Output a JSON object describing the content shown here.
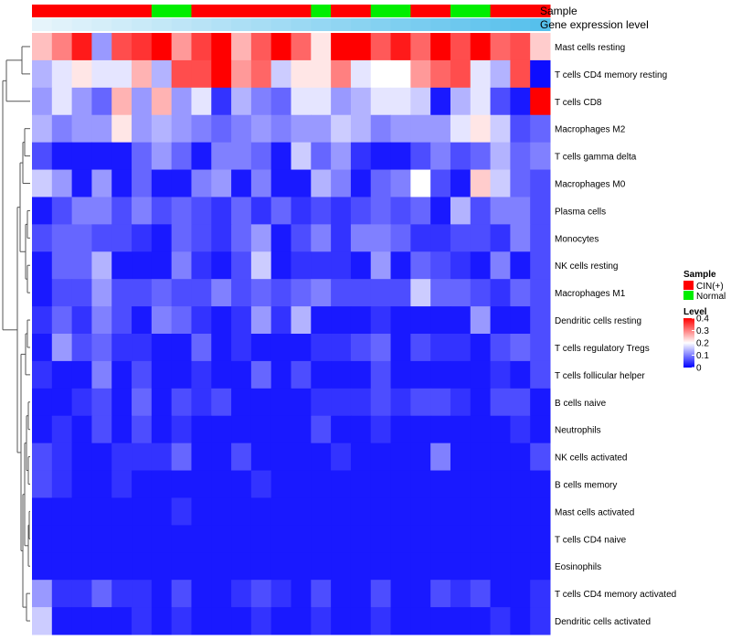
{
  "chart_data": {
    "type": "heatmap",
    "title": "",
    "value_min": 0,
    "value_max": 0.4,
    "annotation_tracks": [
      {
        "name": "Sample",
        "values": [
          "CIN(+)",
          "CIN(+)",
          "CIN(+)",
          "CIN(+)",
          "CIN(+)",
          "CIN(+)",
          "Normal",
          "Normal",
          "CIN(+)",
          "CIN(+)",
          "CIN(+)",
          "CIN(+)",
          "CIN(+)",
          "CIN(+)",
          "Normal",
          "CIN(+)",
          "CIN(+)",
          "Normal",
          "Normal",
          "CIN(+)",
          "CIN(+)",
          "Normal",
          "Normal",
          "CIN(+)",
          "CIN(+)",
          "CIN(+)"
        ]
      },
      {
        "name": "Gene expression level",
        "values": [
          0.0,
          0.04,
          0.08,
          0.12,
          0.16,
          0.2,
          0.24,
          0.28,
          0.32,
          0.36,
          0.4,
          0.44,
          0.48,
          0.52,
          0.56,
          0.6,
          0.64,
          0.68,
          0.72,
          0.76,
          0.8,
          0.84,
          0.88,
          0.92,
          0.96,
          1.0
        ]
      }
    ],
    "rows": [
      "Mast cells resting",
      "T cells CD4 memory resting",
      "T cells CD8",
      "Macrophages M2",
      "T cells gamma delta",
      "Macrophages M0",
      "Plasma cells",
      "Monocytes",
      "NK cells resting",
      "Macrophages M1",
      "Dendritic cells resting",
      "T cells regulatory  Tregs",
      "T cells follicular helper",
      "B cells naive",
      "Neutrophils",
      "NK cells activated",
      "B cells memory",
      "Mast cells activated",
      "T cells CD4 naive",
      "Eosinophils",
      "T cells CD4 memory activated",
      "Dendritic cells activated"
    ],
    "values": [
      [
        0.25,
        0.3,
        0.38,
        0.12,
        0.34,
        0.36,
        0.4,
        0.28,
        0.35,
        0.4,
        0.26,
        0.33,
        0.4,
        0.32,
        0.22,
        0.4,
        0.4,
        0.33,
        0.38,
        0.32,
        0.4,
        0.34,
        0.4,
        0.32,
        0.34,
        0.24
      ],
      [
        0.14,
        0.18,
        0.22,
        0.18,
        0.18,
        0.26,
        0.14,
        0.34,
        0.34,
        0.4,
        0.28,
        0.32,
        0.16,
        0.22,
        0.22,
        0.3,
        0.18,
        0.2,
        0.2,
        0.28,
        0.32,
        0.34,
        0.18,
        0.14,
        0.34,
        0.01
      ],
      [
        0.12,
        0.18,
        0.12,
        0.08,
        0.26,
        0.12,
        0.26,
        0.12,
        0.18,
        0.04,
        0.14,
        0.1,
        0.08,
        0.18,
        0.18,
        0.12,
        0.14,
        0.18,
        0.18,
        0.16,
        0.02,
        0.14,
        0.18,
        0.06,
        0.02,
        0.4
      ],
      [
        0.14,
        0.1,
        0.12,
        0.12,
        0.22,
        0.12,
        0.14,
        0.12,
        0.1,
        0.08,
        0.1,
        0.12,
        0.1,
        0.12,
        0.12,
        0.16,
        0.14,
        0.1,
        0.12,
        0.12,
        0.12,
        0.18,
        0.22,
        0.16,
        0.06,
        0.08
      ],
      [
        0.06,
        0.02,
        0.02,
        0.02,
        0.02,
        0.08,
        0.12,
        0.08,
        0.02,
        0.1,
        0.1,
        0.08,
        0.02,
        0.16,
        0.08,
        0.12,
        0.04,
        0.02,
        0.02,
        0.06,
        0.1,
        0.06,
        0.08,
        0.14,
        0.08,
        0.1
      ],
      [
        0.16,
        0.12,
        0.02,
        0.12,
        0.02,
        0.08,
        0.02,
        0.02,
        0.1,
        0.12,
        0.02,
        0.1,
        0.02,
        0.02,
        0.14,
        0.1,
        0.02,
        0.08,
        0.1,
        0.2,
        0.06,
        0.02,
        0.24,
        0.16,
        0.08,
        0.06
      ],
      [
        0.02,
        0.06,
        0.1,
        0.1,
        0.06,
        0.1,
        0.06,
        0.08,
        0.06,
        0.04,
        0.08,
        0.04,
        0.08,
        0.04,
        0.06,
        0.04,
        0.06,
        0.08,
        0.06,
        0.08,
        0.02,
        0.14,
        0.06,
        0.1,
        0.1,
        0.06
      ],
      [
        0.06,
        0.08,
        0.08,
        0.06,
        0.06,
        0.04,
        0.02,
        0.08,
        0.06,
        0.04,
        0.08,
        0.12,
        0.02,
        0.06,
        0.1,
        0.04,
        0.1,
        0.1,
        0.08,
        0.04,
        0.04,
        0.06,
        0.06,
        0.04,
        0.1,
        0.06
      ],
      [
        0.02,
        0.08,
        0.08,
        0.14,
        0.02,
        0.02,
        0.02,
        0.1,
        0.04,
        0.02,
        0.06,
        0.16,
        0.02,
        0.04,
        0.04,
        0.04,
        0.02,
        0.12,
        0.02,
        0.08,
        0.06,
        0.04,
        0.02,
        0.1,
        0.02,
        0.06
      ],
      [
        0.02,
        0.06,
        0.06,
        0.12,
        0.06,
        0.06,
        0.08,
        0.06,
        0.06,
        0.1,
        0.06,
        0.08,
        0.06,
        0.08,
        0.1,
        0.06,
        0.06,
        0.06,
        0.06,
        0.16,
        0.08,
        0.08,
        0.06,
        0.04,
        0.08,
        0.06
      ],
      [
        0.04,
        0.08,
        0.04,
        0.1,
        0.06,
        0.02,
        0.1,
        0.08,
        0.04,
        0.02,
        0.04,
        0.12,
        0.04,
        0.14,
        0.02,
        0.02,
        0.02,
        0.04,
        0.02,
        0.02,
        0.02,
        0.02,
        0.12,
        0.02,
        0.02,
        0.06
      ],
      [
        0.02,
        0.12,
        0.06,
        0.08,
        0.04,
        0.04,
        0.02,
        0.02,
        0.08,
        0.02,
        0.04,
        0.02,
        0.02,
        0.02,
        0.04,
        0.04,
        0.06,
        0.08,
        0.02,
        0.06,
        0.04,
        0.04,
        0.02,
        0.06,
        0.08,
        0.06
      ],
      [
        0.04,
        0.02,
        0.02,
        0.1,
        0.02,
        0.06,
        0.02,
        0.02,
        0.04,
        0.02,
        0.02,
        0.08,
        0.02,
        0.06,
        0.02,
        0.02,
        0.02,
        0.06,
        0.02,
        0.02,
        0.02,
        0.02,
        0.02,
        0.04,
        0.02,
        0.06
      ],
      [
        0.02,
        0.02,
        0.04,
        0.06,
        0.02,
        0.08,
        0.02,
        0.06,
        0.04,
        0.06,
        0.02,
        0.02,
        0.02,
        0.02,
        0.04,
        0.04,
        0.04,
        0.06,
        0.04,
        0.06,
        0.06,
        0.04,
        0.02,
        0.06,
        0.06,
        0.02
      ],
      [
        0.02,
        0.04,
        0.02,
        0.06,
        0.02,
        0.06,
        0.02,
        0.04,
        0.02,
        0.02,
        0.02,
        0.02,
        0.02,
        0.02,
        0.06,
        0.02,
        0.02,
        0.04,
        0.02,
        0.02,
        0.02,
        0.02,
        0.02,
        0.02,
        0.04,
        0.02
      ],
      [
        0.06,
        0.04,
        0.02,
        0.02,
        0.04,
        0.04,
        0.04,
        0.08,
        0.02,
        0.02,
        0.06,
        0.02,
        0.02,
        0.02,
        0.02,
        0.04,
        0.02,
        0.02,
        0.02,
        0.02,
        0.1,
        0.02,
        0.02,
        0.02,
        0.02,
        0.06
      ],
      [
        0.06,
        0.04,
        0.02,
        0.02,
        0.04,
        0.02,
        0.02,
        0.02,
        0.02,
        0.02,
        0.02,
        0.04,
        0.02,
        0.02,
        0.02,
        0.02,
        0.02,
        0.02,
        0.02,
        0.02,
        0.02,
        0.02,
        0.02,
        0.02,
        0.02,
        0.02
      ],
      [
        0.02,
        0.02,
        0.02,
        0.02,
        0.02,
        0.02,
        0.02,
        0.04,
        0.02,
        0.02,
        0.02,
        0.02,
        0.02,
        0.02,
        0.02,
        0.02,
        0.02,
        0.02,
        0.02,
        0.02,
        0.02,
        0.02,
        0.02,
        0.02,
        0.02,
        0.02
      ],
      [
        0.02,
        0.02,
        0.02,
        0.02,
        0.02,
        0.02,
        0.02,
        0.02,
        0.02,
        0.02,
        0.02,
        0.02,
        0.02,
        0.02,
        0.02,
        0.02,
        0.02,
        0.02,
        0.02,
        0.02,
        0.02,
        0.02,
        0.02,
        0.02,
        0.02,
        0.02
      ],
      [
        0.02,
        0.02,
        0.02,
        0.02,
        0.02,
        0.02,
        0.02,
        0.02,
        0.02,
        0.02,
        0.02,
        0.02,
        0.02,
        0.02,
        0.02,
        0.02,
        0.02,
        0.02,
        0.02,
        0.02,
        0.02,
        0.02,
        0.02,
        0.02,
        0.02,
        0.02
      ],
      [
        0.12,
        0.04,
        0.04,
        0.08,
        0.04,
        0.04,
        0.02,
        0.06,
        0.02,
        0.02,
        0.04,
        0.06,
        0.04,
        0.02,
        0.06,
        0.02,
        0.02,
        0.06,
        0.02,
        0.02,
        0.06,
        0.04,
        0.06,
        0.02,
        0.02,
        0.04
      ],
      [
        0.16,
        0.02,
        0.02,
        0.02,
        0.02,
        0.04,
        0.02,
        0.04,
        0.02,
        0.02,
        0.02,
        0.04,
        0.02,
        0.02,
        0.04,
        0.02,
        0.02,
        0.04,
        0.02,
        0.02,
        0.02,
        0.02,
        0.02,
        0.04,
        0.02,
        0.04
      ]
    ],
    "legend": {
      "sample_title": "Sample",
      "sample_entries": [
        {
          "label": "CIN(+)",
          "color": "#ff0000"
        },
        {
          "label": "Normal",
          "color": "#00ee00"
        }
      ],
      "level_title": "Level",
      "level_ticks": [
        0.4,
        0.3,
        0.2,
        0.1,
        0
      ],
      "level_tick_labels": [
        "0.4",
        "0.3",
        "0.2",
        "0.1",
        "0"
      ]
    },
    "colors": {
      "low": "#0000ff",
      "mid": "#ffffff",
      "high": "#ff0000",
      "expr_low": "#e6f4fb",
      "expr_high": "#56c0ec",
      "cin": "#ff0000",
      "normal": "#00ee00"
    }
  }
}
